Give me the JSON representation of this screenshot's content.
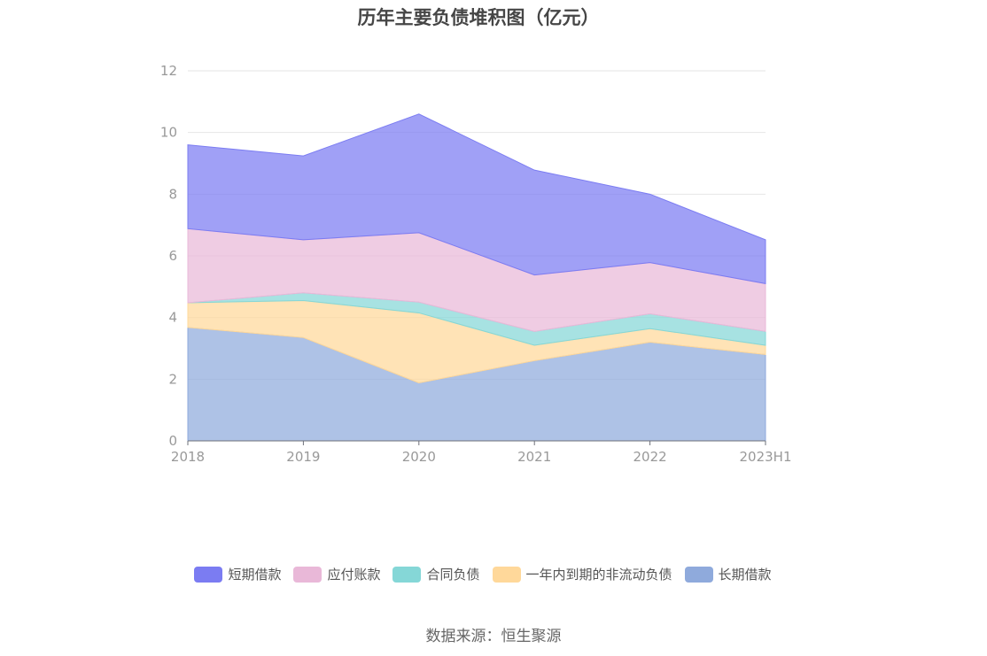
{
  "chart_data": {
    "type": "area",
    "stacked": true,
    "title": "历年主要负债堆积图（亿元）",
    "categories": [
      "2018",
      "2019",
      "2020",
      "2021",
      "2022",
      "2023H1"
    ],
    "ylim": [
      0,
      12
    ],
    "yticks": [
      0,
      2,
      4,
      6,
      8,
      10,
      12
    ],
    "grid": true,
    "legend_position": "bottom",
    "series": [
      {
        "name": "长期借款",
        "color": "#8faadc",
        "values": [
          3.68,
          3.35,
          1.88,
          2.6,
          3.2,
          2.8
        ]
      },
      {
        "name": "一年内到期的非流动负债",
        "color": "#ffd89a",
        "values": [
          0.8,
          1.2,
          2.27,
          0.5,
          0.44,
          0.3
        ]
      },
      {
        "name": "合同负债",
        "color": "#85d7d7",
        "values": [
          0.0,
          0.25,
          0.35,
          0.45,
          0.48,
          0.45
        ]
      },
      {
        "name": "应付账款",
        "color": "#e9b8d8",
        "values": [
          2.4,
          1.72,
          2.25,
          1.83,
          1.66,
          1.55
        ]
      },
      {
        "name": "短期借款",
        "color": "#7b7cf2",
        "values": [
          2.72,
          2.72,
          3.85,
          3.4,
          2.22,
          1.42
        ]
      }
    ],
    "legend_order": [
      "短期借款",
      "应付账款",
      "合同负债",
      "一年内到期的非流动负债",
      "长期借款"
    ]
  },
  "source": "数据来源：恒生聚源"
}
